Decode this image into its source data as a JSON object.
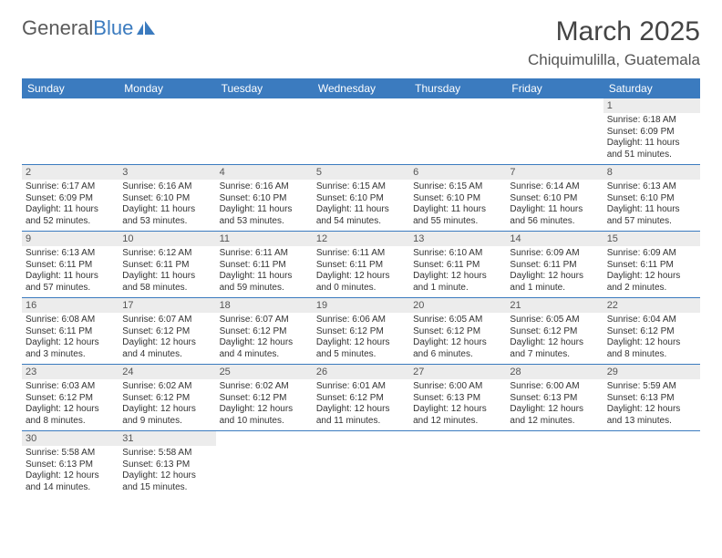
{
  "brand": {
    "name1": "General",
    "name2": "Blue"
  },
  "title": "March 2025",
  "location": "Chiquimulilla, Guatemala",
  "colors": {
    "accent": "#3b7bbf",
    "text": "#333333",
    "daynum_bg": "#ececec",
    "bg": "#ffffff"
  },
  "dayHeaders": [
    "Sunday",
    "Monday",
    "Tuesday",
    "Wednesday",
    "Thursday",
    "Friday",
    "Saturday"
  ],
  "weeks": [
    [
      null,
      null,
      null,
      null,
      null,
      null,
      {
        "n": "1",
        "sr": "Sunrise: 6:18 AM",
        "ss": "Sunset: 6:09 PM",
        "dl": "Daylight: 11 hours and 51 minutes."
      }
    ],
    [
      {
        "n": "2",
        "sr": "Sunrise: 6:17 AM",
        "ss": "Sunset: 6:09 PM",
        "dl": "Daylight: 11 hours and 52 minutes."
      },
      {
        "n": "3",
        "sr": "Sunrise: 6:16 AM",
        "ss": "Sunset: 6:10 PM",
        "dl": "Daylight: 11 hours and 53 minutes."
      },
      {
        "n": "4",
        "sr": "Sunrise: 6:16 AM",
        "ss": "Sunset: 6:10 PM",
        "dl": "Daylight: 11 hours and 53 minutes."
      },
      {
        "n": "5",
        "sr": "Sunrise: 6:15 AM",
        "ss": "Sunset: 6:10 PM",
        "dl": "Daylight: 11 hours and 54 minutes."
      },
      {
        "n": "6",
        "sr": "Sunrise: 6:15 AM",
        "ss": "Sunset: 6:10 PM",
        "dl": "Daylight: 11 hours and 55 minutes."
      },
      {
        "n": "7",
        "sr": "Sunrise: 6:14 AM",
        "ss": "Sunset: 6:10 PM",
        "dl": "Daylight: 11 hours and 56 minutes."
      },
      {
        "n": "8",
        "sr": "Sunrise: 6:13 AM",
        "ss": "Sunset: 6:10 PM",
        "dl": "Daylight: 11 hours and 57 minutes."
      }
    ],
    [
      {
        "n": "9",
        "sr": "Sunrise: 6:13 AM",
        "ss": "Sunset: 6:11 PM",
        "dl": "Daylight: 11 hours and 57 minutes."
      },
      {
        "n": "10",
        "sr": "Sunrise: 6:12 AM",
        "ss": "Sunset: 6:11 PM",
        "dl": "Daylight: 11 hours and 58 minutes."
      },
      {
        "n": "11",
        "sr": "Sunrise: 6:11 AM",
        "ss": "Sunset: 6:11 PM",
        "dl": "Daylight: 11 hours and 59 minutes."
      },
      {
        "n": "12",
        "sr": "Sunrise: 6:11 AM",
        "ss": "Sunset: 6:11 PM",
        "dl": "Daylight: 12 hours and 0 minutes."
      },
      {
        "n": "13",
        "sr": "Sunrise: 6:10 AM",
        "ss": "Sunset: 6:11 PM",
        "dl": "Daylight: 12 hours and 1 minute."
      },
      {
        "n": "14",
        "sr": "Sunrise: 6:09 AM",
        "ss": "Sunset: 6:11 PM",
        "dl": "Daylight: 12 hours and 1 minute."
      },
      {
        "n": "15",
        "sr": "Sunrise: 6:09 AM",
        "ss": "Sunset: 6:11 PM",
        "dl": "Daylight: 12 hours and 2 minutes."
      }
    ],
    [
      {
        "n": "16",
        "sr": "Sunrise: 6:08 AM",
        "ss": "Sunset: 6:11 PM",
        "dl": "Daylight: 12 hours and 3 minutes."
      },
      {
        "n": "17",
        "sr": "Sunrise: 6:07 AM",
        "ss": "Sunset: 6:12 PM",
        "dl": "Daylight: 12 hours and 4 minutes."
      },
      {
        "n": "18",
        "sr": "Sunrise: 6:07 AM",
        "ss": "Sunset: 6:12 PM",
        "dl": "Daylight: 12 hours and 4 minutes."
      },
      {
        "n": "19",
        "sr": "Sunrise: 6:06 AM",
        "ss": "Sunset: 6:12 PM",
        "dl": "Daylight: 12 hours and 5 minutes."
      },
      {
        "n": "20",
        "sr": "Sunrise: 6:05 AM",
        "ss": "Sunset: 6:12 PM",
        "dl": "Daylight: 12 hours and 6 minutes."
      },
      {
        "n": "21",
        "sr": "Sunrise: 6:05 AM",
        "ss": "Sunset: 6:12 PM",
        "dl": "Daylight: 12 hours and 7 minutes."
      },
      {
        "n": "22",
        "sr": "Sunrise: 6:04 AM",
        "ss": "Sunset: 6:12 PM",
        "dl": "Daylight: 12 hours and 8 minutes."
      }
    ],
    [
      {
        "n": "23",
        "sr": "Sunrise: 6:03 AM",
        "ss": "Sunset: 6:12 PM",
        "dl": "Daylight: 12 hours and 8 minutes."
      },
      {
        "n": "24",
        "sr": "Sunrise: 6:02 AM",
        "ss": "Sunset: 6:12 PM",
        "dl": "Daylight: 12 hours and 9 minutes."
      },
      {
        "n": "25",
        "sr": "Sunrise: 6:02 AM",
        "ss": "Sunset: 6:12 PM",
        "dl": "Daylight: 12 hours and 10 minutes."
      },
      {
        "n": "26",
        "sr": "Sunrise: 6:01 AM",
        "ss": "Sunset: 6:12 PM",
        "dl": "Daylight: 12 hours and 11 minutes."
      },
      {
        "n": "27",
        "sr": "Sunrise: 6:00 AM",
        "ss": "Sunset: 6:13 PM",
        "dl": "Daylight: 12 hours and 12 minutes."
      },
      {
        "n": "28",
        "sr": "Sunrise: 6:00 AM",
        "ss": "Sunset: 6:13 PM",
        "dl": "Daylight: 12 hours and 12 minutes."
      },
      {
        "n": "29",
        "sr": "Sunrise: 5:59 AM",
        "ss": "Sunset: 6:13 PM",
        "dl": "Daylight: 12 hours and 13 minutes."
      }
    ],
    [
      {
        "n": "30",
        "sr": "Sunrise: 5:58 AM",
        "ss": "Sunset: 6:13 PM",
        "dl": "Daylight: 12 hours and 14 minutes."
      },
      {
        "n": "31",
        "sr": "Sunrise: 5:58 AM",
        "ss": "Sunset: 6:13 PM",
        "dl": "Daylight: 12 hours and 15 minutes."
      },
      null,
      null,
      null,
      null,
      null
    ]
  ]
}
